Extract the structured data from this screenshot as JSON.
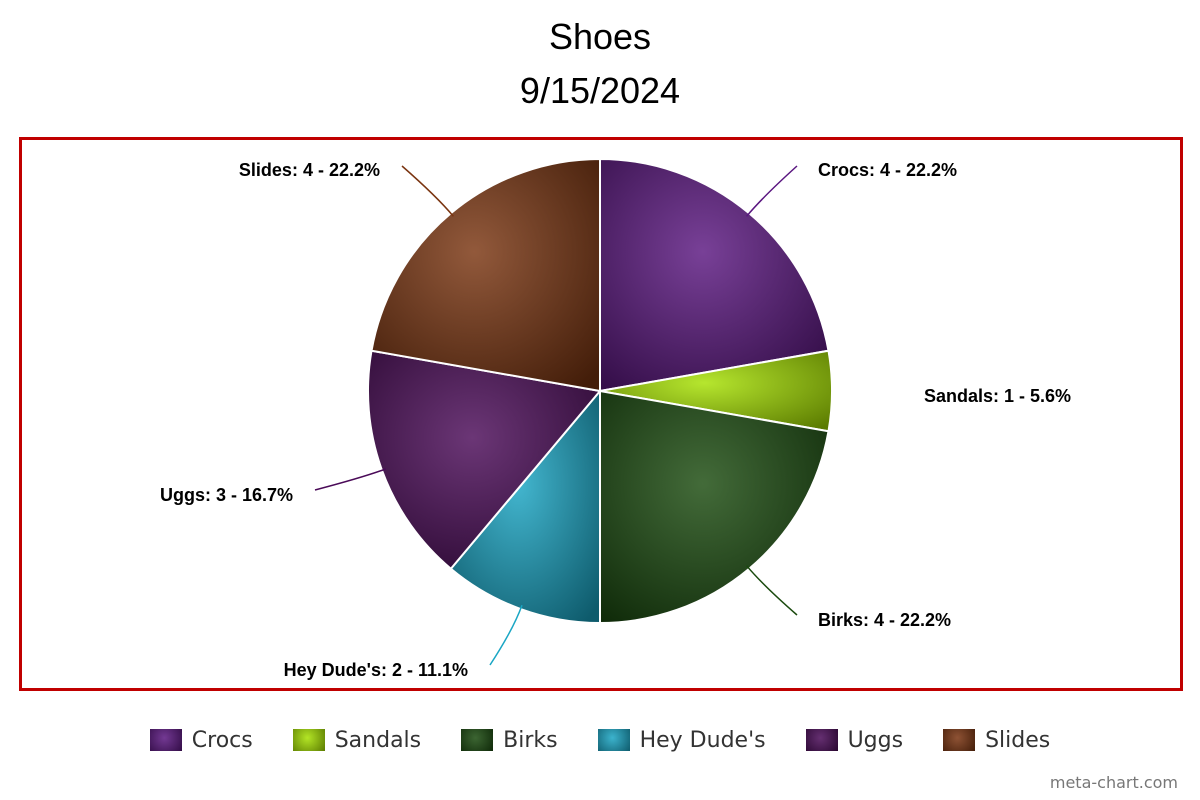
{
  "chart_data": {
    "type": "pie",
    "title": "Shoes",
    "subtitle": "9/15/2024",
    "categories": [
      "Crocs",
      "Sandals",
      "Birks",
      "Hey Dude's",
      "Uggs",
      "Slides"
    ],
    "values": [
      4,
      1,
      4,
      2,
      3,
      4
    ],
    "slice_labels": [
      "Crocs: 4 - 22.2%",
      "Sandals: 1 - 5.6%",
      "Birks: 4 - 22.2%",
      "Hey Dude's: 2 - 11.1%",
      "Uggs: 3 - 16.7%",
      "Slides: 4 - 22.2%"
    ],
    "colors": [
      "#5a1680",
      "#a6e000",
      "#1a4a0e",
      "#1aa6c4",
      "#4a0a58",
      "#7a3410"
    ],
    "legend": "bottom",
    "start_angle": "top, clockwise"
  },
  "credit": "meta-chart.com"
}
